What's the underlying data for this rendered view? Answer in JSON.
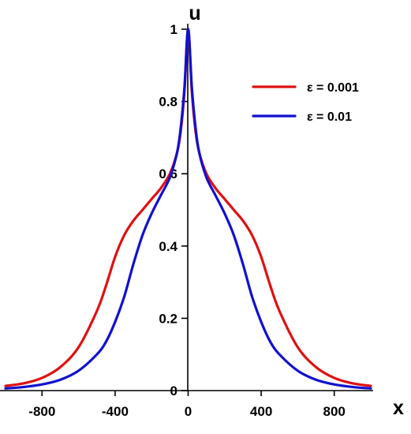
{
  "chart_data": {
    "type": "line",
    "xlabel": "x",
    "ylabel": "u",
    "xlim": [
      -1000,
      1000
    ],
    "ylim": [
      0,
      1
    ],
    "x_ticks": [
      -800,
      -400,
      0,
      400,
      800
    ],
    "x_tick_labels": [
      "-800",
      "-400",
      "0",
      "400",
      "800"
    ],
    "y_ticks": [
      0,
      0.2,
      0.4,
      0.6,
      0.8,
      1
    ],
    "y_tick_labels": [
      "0",
      "0.2",
      "0.4",
      "0.6",
      "0.8",
      "1"
    ],
    "legend_position": "top-right",
    "grid": false,
    "series": [
      {
        "name": "ε = 0.001",
        "color": "#e01010",
        "x": [
          -1000,
          -900,
          -800,
          -700,
          -600,
          -500,
          -450,
          -400,
          -350,
          -300,
          -250,
          -200,
          -150,
          -100,
          -60,
          -40,
          -20,
          0,
          20,
          40,
          60,
          100,
          150,
          200,
          250,
          300,
          350,
          400,
          450,
          500,
          600,
          700,
          800,
          900,
          1000
        ],
        "y": [
          0.013,
          0.02,
          0.035,
          0.065,
          0.12,
          0.22,
          0.29,
          0.37,
          0.43,
          0.47,
          0.5,
          0.53,
          0.56,
          0.6,
          0.66,
          0.72,
          0.83,
          1.0,
          0.83,
          0.72,
          0.66,
          0.6,
          0.56,
          0.53,
          0.5,
          0.47,
          0.43,
          0.37,
          0.29,
          0.22,
          0.12,
          0.065,
          0.035,
          0.02,
          0.013
        ]
      },
      {
        "name": "ε = 0.01",
        "color": "#1010d0",
        "x": [
          -1000,
          -900,
          -800,
          -700,
          -600,
          -500,
          -450,
          -400,
          -350,
          -300,
          -250,
          -200,
          -150,
          -100,
          -60,
          -40,
          -20,
          0,
          20,
          40,
          60,
          100,
          150,
          200,
          250,
          300,
          350,
          400,
          450,
          500,
          600,
          700,
          800,
          900,
          1000
        ],
        "y": [
          0.006,
          0.01,
          0.017,
          0.03,
          0.055,
          0.1,
          0.135,
          0.19,
          0.26,
          0.35,
          0.43,
          0.49,
          0.54,
          0.59,
          0.66,
          0.73,
          0.84,
          1.0,
          0.84,
          0.73,
          0.66,
          0.59,
          0.54,
          0.49,
          0.43,
          0.35,
          0.26,
          0.19,
          0.135,
          0.1,
          0.055,
          0.03,
          0.017,
          0.01,
          0.006
        ]
      }
    ]
  }
}
